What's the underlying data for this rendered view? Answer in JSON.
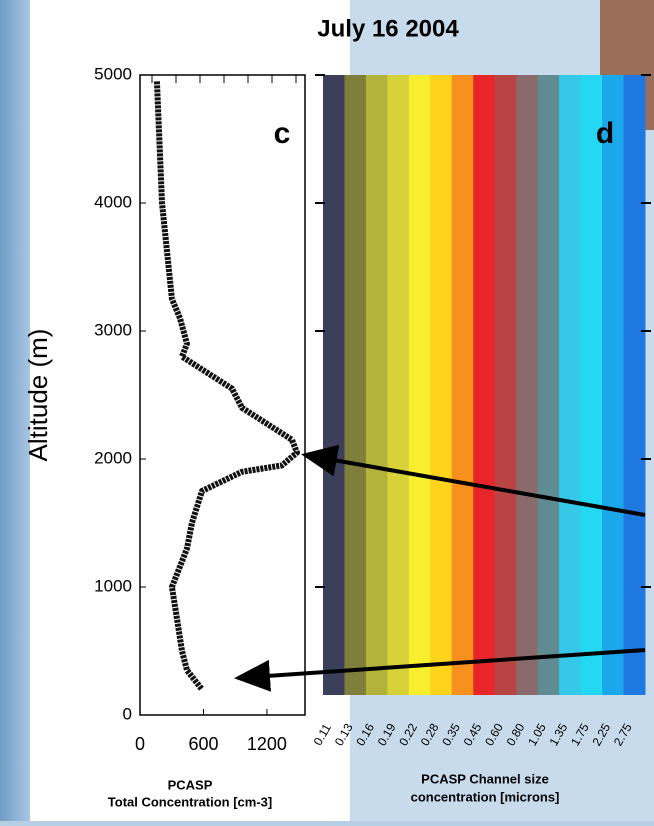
{
  "title": "July 16 2004",
  "chart_data": [
    {
      "type": "profile",
      "panel_label": "c",
      "ylabel": "Altitude (m)",
      "xlabel": [
        "PCASP",
        "Total Concentration [cm-3]"
      ],
      "x": [
        160,
        208,
        302,
        378,
        444,
        397,
        586,
        870,
        964,
        1248,
        1437,
        1484,
        1342,
        964,
        586,
        491,
        444,
        302,
        350,
        397,
        444,
        586
      ],
      "values": [
        4950,
        4000,
        3250,
        3100,
        2900,
        2800,
        2700,
        2550,
        2400,
        2250,
        2150,
        2050,
        1950,
        1900,
        1750,
        1500,
        1300,
        1000,
        750,
        500,
        350,
        200
      ],
      "color": "#111111",
      "xlim": [
        0,
        1560
      ],
      "xticks": [
        0,
        600,
        1200
      ],
      "ylim": [
        0,
        5000
      ],
      "yticks": [
        0,
        1000,
        2000,
        3000,
        4000,
        5000
      ]
    },
    {
      "type": "heatmap",
      "panel_label": "d",
      "xlabel": [
        "PCASP Channel size",
        "concentration [microns]"
      ],
      "categories": [
        "0.11",
        "0.13",
        "0.16",
        "0.19",
        "0.22",
        "0.28",
        "0.35",
        "0.45",
        "0.60",
        "0.80",
        "1.05",
        "1.35",
        "1.75",
        "2.25",
        "2.75"
      ],
      "colors": [
        "#3b3f5a",
        "#7f7e3a",
        "#b3b23a",
        "#d8d23a",
        "#f7ef2e",
        "#ffd21c",
        "#f7901c",
        "#e8262a",
        "#b84444",
        "#8a6a6a",
        "#5f8c92",
        "#35c8e8",
        "#22d8f2",
        "#1aa8ea",
        "#1e78e0"
      ],
      "ylim": [
        0,
        5000
      ],
      "yticks": [
        0,
        1000,
        2000,
        3000,
        4000,
        5000
      ]
    }
  ]
}
